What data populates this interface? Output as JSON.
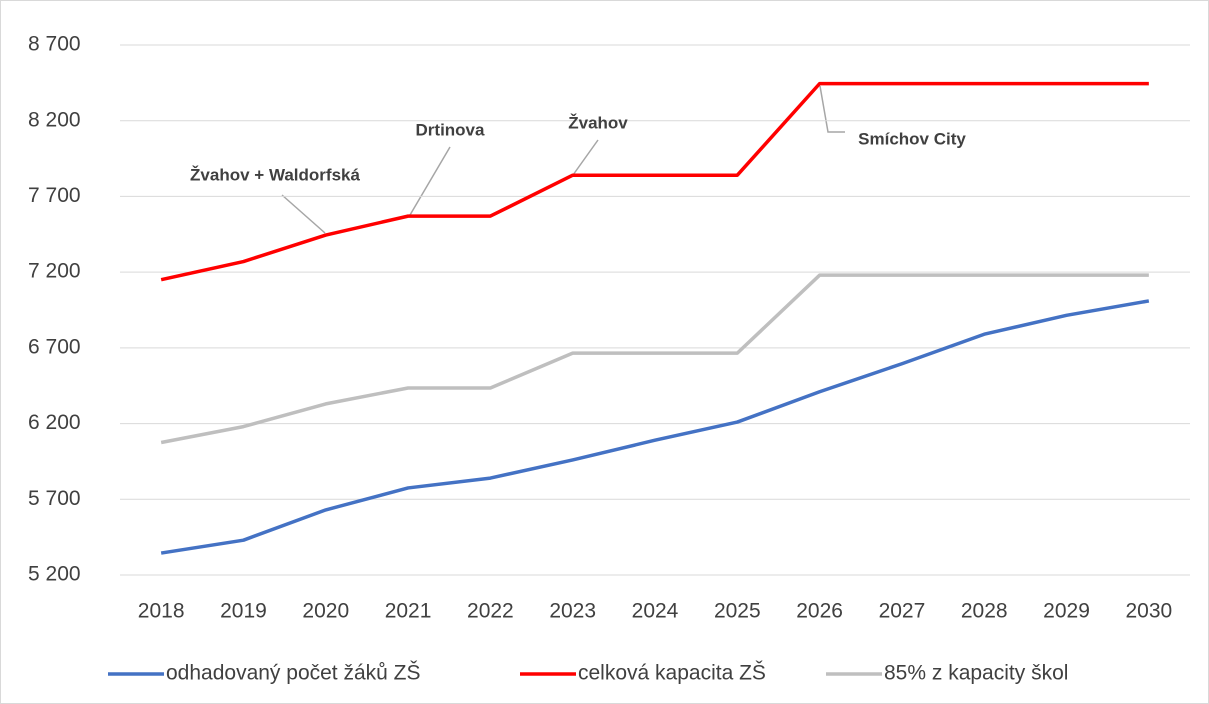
{
  "chart_data": {
    "type": "line",
    "categories": [
      "2018",
      "2019",
      "2020",
      "2021",
      "2022",
      "2023",
      "2024",
      "2025",
      "2026",
      "2027",
      "2028",
      "2029",
      "2030"
    ],
    "series": [
      {
        "name": "odhadovaný počet žáků ZŠ",
        "color": "#4472c4",
        "values": [
          5345,
          5430,
          5630,
          5775,
          5840,
          5960,
          6090,
          6210,
          6410,
          6595,
          6790,
          6915,
          7010
        ]
      },
      {
        "name": "celková kapacita ZŠ",
        "color": "#ff0000",
        "values": [
          7150,
          7270,
          7445,
          7570,
          7570,
          7840,
          7840,
          7840,
          8445,
          8445,
          8445,
          8445,
          8445
        ]
      },
      {
        "name": "85% z kapacity škol",
        "color": "#bfbfbf",
        "values": [
          6075,
          6180,
          6330,
          6435,
          6435,
          6665,
          6665,
          6665,
          7180,
          7180,
          7180,
          7180,
          7180
        ]
      }
    ],
    "annotations": [
      "Žvahov + Waldorfská",
      "Drtinova",
      "Žvahov",
      "Smíchov City"
    ],
    "ylim": [
      5200,
      8700
    ],
    "yticks": [
      {
        "value": 5200,
        "label": "5 200"
      },
      {
        "value": 5700,
        "label": "5 700"
      },
      {
        "value": 6200,
        "label": "6 200"
      },
      {
        "value": 6700,
        "label": "6 700"
      },
      {
        "value": 7200,
        "label": "7 200"
      },
      {
        "value": 7700,
        "label": "7 700"
      },
      {
        "value": 8200,
        "label": "8 200"
      },
      {
        "value": 8700,
        "label": "8 700"
      }
    ],
    "grid": true,
    "legend": "bottom"
  }
}
